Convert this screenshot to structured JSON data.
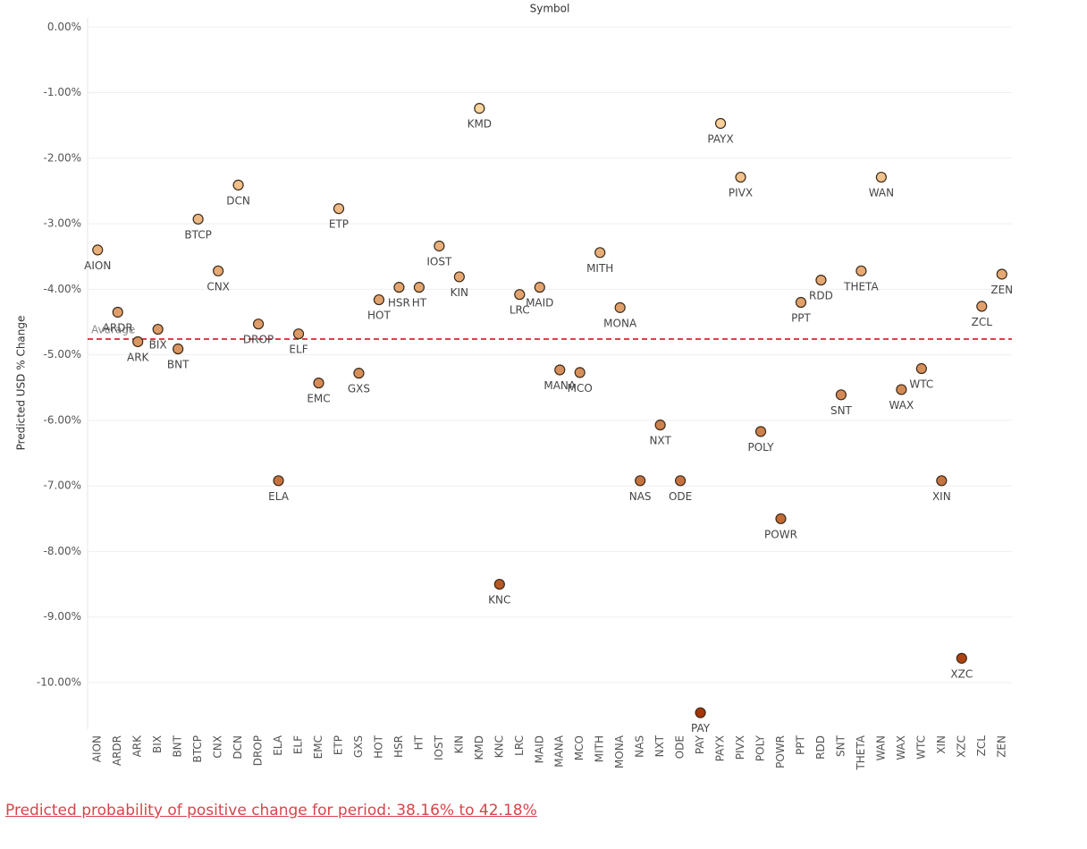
{
  "chart_data": {
    "type": "dot",
    "title": "Symbol",
    "y_label": "Predicted USD % Change",
    "categories": [
      "AION",
      "ARDR",
      "ARK",
      "BIX",
      "BNT",
      "BTCP",
      "CNX",
      "DCN",
      "DROP",
      "ELA",
      "ELF",
      "EMC",
      "ETP",
      "GXS",
      "HOT",
      "HSR",
      "HT",
      "IOST",
      "KIN",
      "KMD",
      "KNC",
      "LRC",
      "MAID",
      "MANA",
      "MCO",
      "MITH",
      "MONA",
      "NAS",
      "NXT",
      "ODE",
      "PAY",
      "PAYX",
      "PIVX",
      "POLY",
      "POWR",
      "PPT",
      "RDD",
      "SNT",
      "THETA",
      "WAN",
      "WAX",
      "WTC",
      "XIN",
      "XZC",
      "ZCL",
      "ZEN"
    ],
    "values": [
      -3.4,
      -4.35,
      -4.8,
      -4.61,
      -4.91,
      -2.93,
      -3.72,
      -2.41,
      -4.53,
      -6.92,
      -4.68,
      -5.43,
      -2.77,
      -5.28,
      -4.16,
      -3.97,
      -3.97,
      -3.34,
      -3.81,
      -1.24,
      -8.5,
      -4.08,
      -3.97,
      -5.23,
      -5.27,
      -3.44,
      -4.28,
      -6.92,
      -6.07,
      -6.92,
      -10.46,
      -1.47,
      -2.29,
      -6.17,
      -7.5,
      -4.2,
      -3.86,
      -5.61,
      -3.72,
      -2.29,
      -5.53,
      -5.21,
      -6.92,
      -9.63,
      -4.26,
      -3.77
    ],
    "color_scale": [
      "#fdd49e",
      "#a63603"
    ],
    "average": {
      "label": "Average",
      "value": -4.76,
      "color": "#d9434a"
    },
    "ylim": [
      -10.71,
      0.14
    ],
    "yticks": [
      {
        "value": 0,
        "label": "0.00%"
      },
      {
        "value": -1,
        "label": "-1.00%"
      },
      {
        "value": -2,
        "label": "-2.00%"
      },
      {
        "value": -3,
        "label": "-3.00%"
      },
      {
        "value": -4,
        "label": "-4.00%"
      },
      {
        "value": -5,
        "label": "-5.00%"
      },
      {
        "value": -6,
        "label": "-6.00%"
      },
      {
        "value": -7,
        "label": "-7.00%"
      },
      {
        "value": -8,
        "label": "-8.00%"
      },
      {
        "value": -9,
        "label": "-9.00%"
      },
      {
        "value": -10,
        "label": "-10.00%"
      }
    ],
    "grid": true
  },
  "footer": "Predicted probability of positive change for period:  38.16% to 42.18%"
}
